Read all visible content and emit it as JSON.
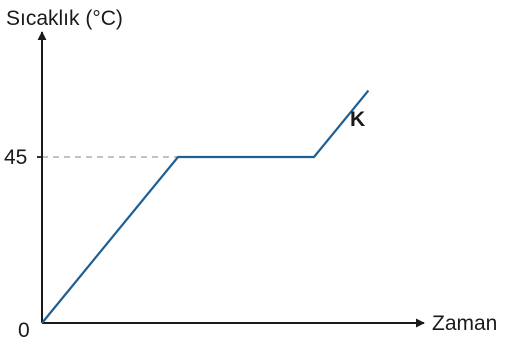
{
  "chart_data": {
    "type": "line",
    "title": "",
    "ylabel": "Sıcaklık (°C)",
    "xlabel": "Zaman",
    "origin_label": "0",
    "yticks": [
      {
        "value": 45,
        "label": "45"
      }
    ],
    "reference_lines": [
      {
        "axis": "y",
        "value": 45,
        "style": "dashed",
        "color": "#9e9e9e"
      }
    ],
    "grid": false,
    "x_tick_labels": false,
    "series": [
      {
        "name": "K",
        "color": "#1f5f94",
        "x": [
          0,
          1,
          2,
          2.4
        ],
        "y": [
          0,
          45,
          45,
          63
        ]
      }
    ]
  },
  "colors": {
    "axis": "#1a1a1a",
    "series": "#1f5f94",
    "reference": "#9e9e9e"
  }
}
